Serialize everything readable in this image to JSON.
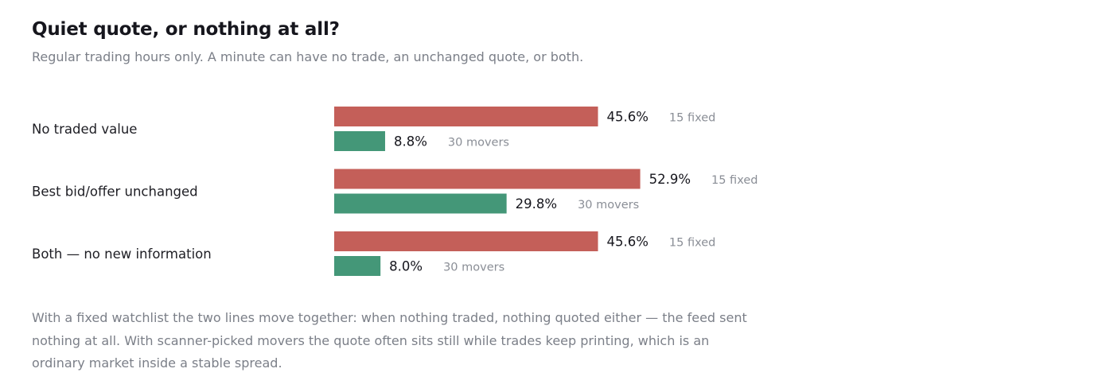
{
  "header": {
    "title": "Quiet quote, or nothing at all?",
    "subtitle": "Regular trading hours only. A minute can have no trade, an unchanged quote, or both."
  },
  "colors": {
    "fixed": "#c45f59",
    "movers": "#449778"
  },
  "chart_data": {
    "type": "bar",
    "orientation": "horizontal",
    "unit": "%",
    "categories": [
      "No traded value",
      "Best bid/offer unchanged",
      "Both — no new information"
    ],
    "series": [
      {
        "name": "15 fixed",
        "values": [
          45.6,
          52.9,
          45.6
        ],
        "labels": [
          "45.6%",
          "52.9%",
          "45.6%"
        ]
      },
      {
        "name": "30 movers",
        "values": [
          8.8,
          29.8,
          8.0
        ],
        "labels": [
          "8.8%",
          "29.8%",
          "8.0%"
        ]
      }
    ],
    "xlim": [
      0,
      100
    ],
    "grid": false
  },
  "caption": "With a fixed watchlist the two lines move together: when nothing traded, nothing quoted either — the feed sent nothing at all. With scanner-picked movers the quote often sits still while trades keep printing, which is an ordinary market inside a stable spread."
}
